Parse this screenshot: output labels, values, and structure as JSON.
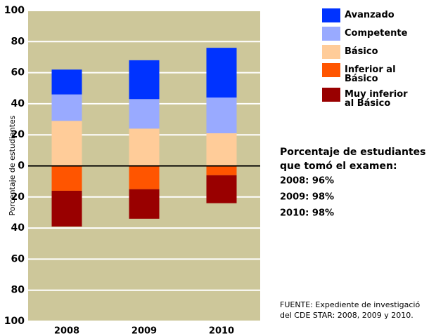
{
  "chart_data": {
    "type": "bar",
    "stacked": "diverging",
    "ylabel": "Porcentaje de estudiantes",
    "categories": [
      "2008",
      "2009",
      "2010"
    ],
    "series": [
      {
        "name": "Avanzado",
        "color": "#0033ff",
        "values": [
          16,
          25,
          32
        ]
      },
      {
        "name": "Competente",
        "color": "#99aaff",
        "values": [
          17,
          19,
          23
        ]
      },
      {
        "name": "Básico",
        "color": "#ffcc99",
        "values": [
          29,
          24,
          21
        ]
      },
      {
        "name": "Inferior al Básico",
        "color": "#ff5500",
        "values": [
          -16,
          -15,
          -6
        ]
      },
      {
        "name": "Muy inferior al Básico",
        "color": "#990000",
        "values": [
          -23,
          -19,
          -18
        ]
      }
    ],
    "ylim": [
      -100,
      100
    ],
    "yticks": [
      {
        "value": -100,
        "label": "100"
      },
      {
        "value": -80,
        "label": "80"
      },
      {
        "value": -60,
        "label": "60"
      },
      {
        "value": -40,
        "label": "40"
      },
      {
        "value": -20,
        "label": "20"
      },
      0,
      20,
      40,
      60,
      80,
      100
    ],
    "grid": true,
    "background": "#cdc79a",
    "annotations": [
      "Porcentaje de estudiantes",
      "que tomó el examen:",
      "2008: 96%",
      "2009: 98%",
      "2010: 98%"
    ],
    "source": [
      "FUENTE: Expediente de investigació",
      "del CDE STAR: 2008, 2009 y 2010."
    ]
  }
}
